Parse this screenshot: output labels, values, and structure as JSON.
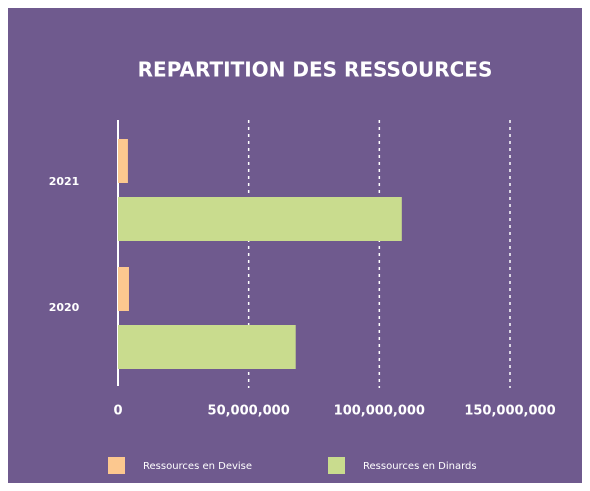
{
  "chart_data": {
    "type": "bar",
    "orientation": "horizontal",
    "title": "REPARTITION DES RESSOURCES",
    "categories": [
      "2021",
      "2020"
    ],
    "series": [
      {
        "name": "Ressources en Devise",
        "color": "#fcc88f",
        "values": [
          3800000,
          4200000
        ]
      },
      {
        "name": "Ressources en Dinards",
        "color": "#c9dc8e",
        "values": [
          108600000,
          68000000
        ]
      }
    ],
    "xlim": [
      0,
      150000000
    ],
    "xticks": [
      0,
      {
        "value": 50000000,
        "label": "50,000,000"
      },
      {
        "value": 100000000,
        "label": "100,000,000"
      },
      {
        "value": 150000000,
        "label": "150,000,000"
      }
    ],
    "grid": true,
    "legend": "bottom"
  }
}
